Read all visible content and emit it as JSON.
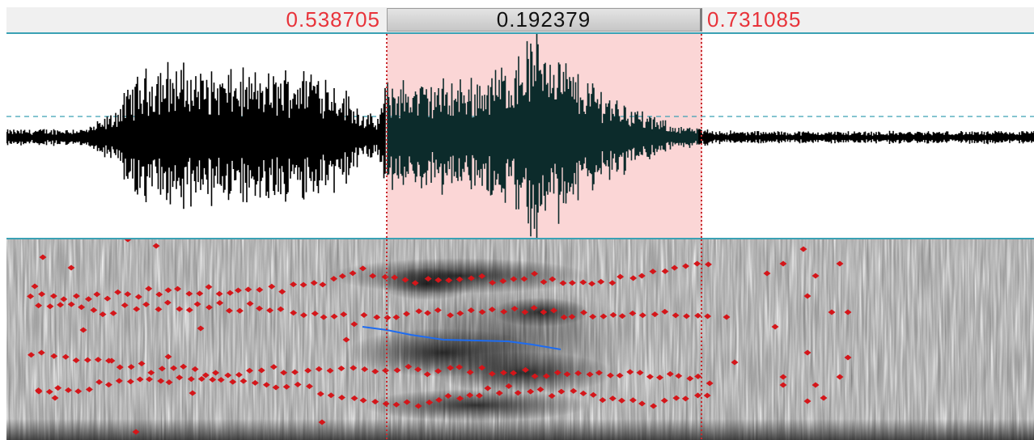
{
  "selection": {
    "start": "0.538705",
    "duration": "0.192379",
    "end": "0.731085"
  },
  "colors": {
    "ruler_text": "#e8333a",
    "selection_fill": "#fbd6d6",
    "waveform": "#000000",
    "waveform_selected": "#0c2b2b",
    "formant_dots": "#d4161a",
    "pitch_line": "#1e6cf0",
    "divider": "#3aa1b4"
  }
}
